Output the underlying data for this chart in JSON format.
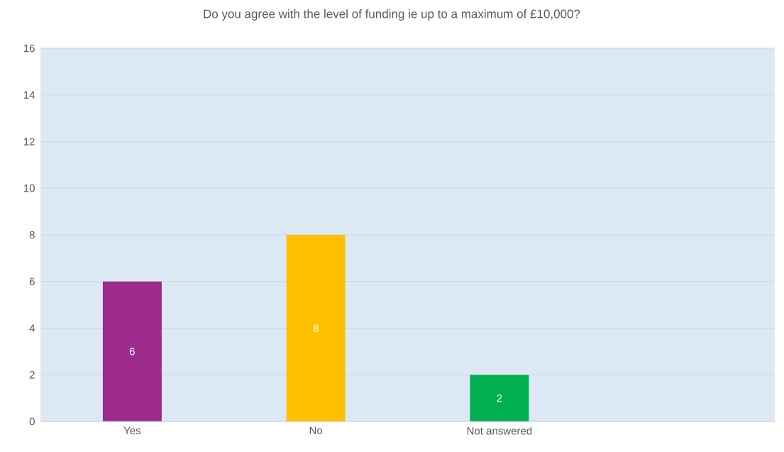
{
  "chart_data": {
    "type": "bar",
    "title": "Do you agree with the level of funding ie up to a maximum of £10,000?",
    "categories": [
      "Yes",
      "No",
      "Not answered",
      null
    ],
    "values": [
      6,
      8,
      2,
      null
    ],
    "colors": [
      "#9e2a8e",
      "#ffc000",
      "#00b050",
      "#5b9bd5"
    ],
    "ylim": [
      0,
      16
    ],
    "yticks": [
      0,
      2,
      4,
      6,
      8,
      10,
      12,
      14,
      16
    ],
    "grid": "y",
    "data_labels": true
  }
}
